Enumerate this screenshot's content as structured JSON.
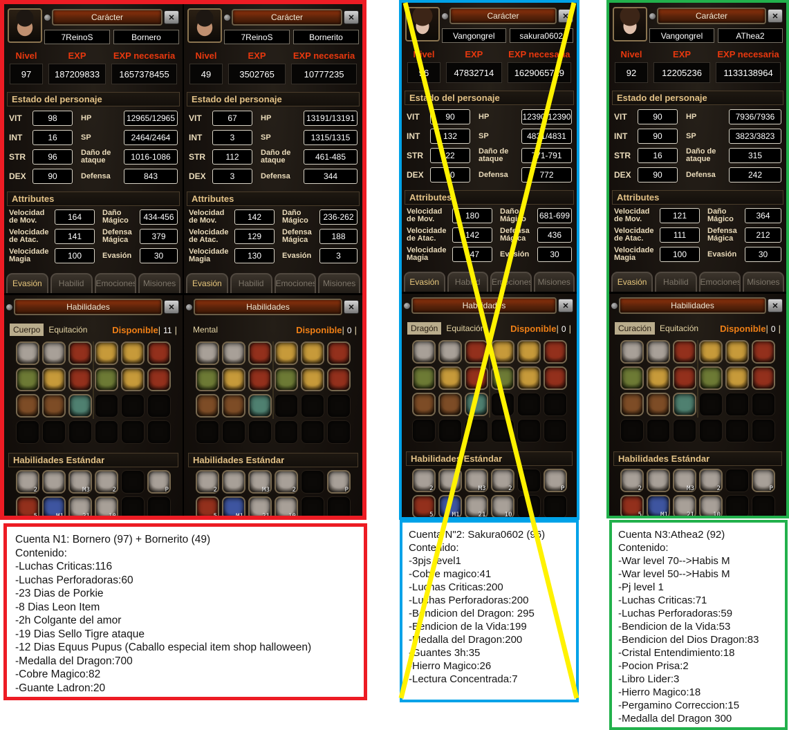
{
  "colors": {
    "red": "#ed1c24",
    "blue": "#00a2e8",
    "green": "#22b14c",
    "yellow": "#fff200"
  },
  "shared": {
    "character_title": "Carácter",
    "nivel_label": "Nivel",
    "exp_label": "EXP",
    "exp_need_label": "EXP necesaria",
    "estado_header": "Estado del personaje",
    "attributes_header": "Attributes",
    "stat_labels": {
      "vit": "VIT",
      "int": "INT",
      "str": "STR",
      "dex": "DEX",
      "hp": "HP",
      "sp": "SP",
      "atk": "Daño de ataque",
      "def": "Defensa"
    },
    "attr_labels": {
      "mov": "Velocidad de Mov.",
      "atac": "Velocidade de Atac.",
      "magia": "Velocidade Magia",
      "dmg": "Daño Mágico",
      "defm": "Defensa Mágica",
      "eva": "Evasión"
    },
    "tabs": [
      "Evasión",
      "Habilid",
      "Emociones",
      "Misiones"
    ],
    "skills_title": "Habilidades",
    "disponible_label": "Disponible",
    "standard_header": "Habilidades Estándar",
    "standard_badges": [
      [
        "2",
        "",
        "M3",
        "2",
        "",
        "P"
      ],
      [
        "5",
        "M1",
        "21",
        "10",
        "",
        ""
      ]
    ]
  },
  "panels": [
    {
      "avatar": "male-warrior-icon",
      "server": "7ReinoS",
      "name": "Bornero",
      "nivel": "97",
      "exp": "187209833",
      "exp_need": "1657378455",
      "stats": {
        "vit": "98",
        "int": "16",
        "str": "96",
        "dex": "90",
        "hp": "12965/12965",
        "sp": "2464/2464",
        "atk": "1016-1086",
        "def": "843"
      },
      "attrs": {
        "mov": "164",
        "atac": "141",
        "magia": "100",
        "dmg": "434-456",
        "defm": "379",
        "eva": "30"
      },
      "skills": {
        "tab1": "Cuerpo",
        "tab2": "Equitación",
        "tab1_active": "true",
        "disponible": "11"
      }
    },
    {
      "avatar": "male-warrior-icon",
      "server": "7ReinoS",
      "name": "Bornerito",
      "nivel": "49",
      "exp": "3502765",
      "exp_need": "10777235",
      "stats": {
        "vit": "67",
        "int": "3",
        "str": "112",
        "dex": "3",
        "hp": "13191/13191",
        "sp": "1315/1315",
        "atk": "461-485",
        "def": "344"
      },
      "attrs": {
        "mov": "142",
        "atac": "129",
        "magia": "130",
        "dmg": "236-262",
        "defm": "188",
        "eva": "3"
      },
      "skills": {
        "tab1": "Mental",
        "tab1_active": "false",
        "disponible": "0"
      }
    },
    {
      "avatar": "female-shaman-icon",
      "server": "Vangongrel",
      "name": "sakura0602",
      "nivel": "96",
      "exp": "47832714",
      "exp_need": "1629065729",
      "stats": {
        "vit": "90",
        "int": "132",
        "str": "22",
        "dex": "90",
        "hp": "12390/12390",
        "sp": "4831/4831",
        "atk": "771-791",
        "def": "772"
      },
      "attrs": {
        "mov": "180",
        "atac": "142",
        "magia": "147",
        "dmg": "681-699",
        "defm": "436",
        "eva": "30"
      },
      "skills": {
        "tab1": "Dragón",
        "tab2": "Equitación",
        "tab1_active": "true",
        "disponible": "0"
      }
    },
    {
      "avatar": "female-shaman-icon",
      "server": "Vangongrel",
      "name": "AThea2",
      "nivel": "92",
      "exp": "12205236",
      "exp_need": "1133138964",
      "stats": {
        "vit": "90",
        "int": "90",
        "str": "16",
        "dex": "90",
        "hp": "7936/7936",
        "sp": "3823/3823",
        "atk": "315",
        "def": "242"
      },
      "attrs": {
        "mov": "121",
        "atac": "111",
        "magia": "100",
        "dmg": "364",
        "defm": "212",
        "eva": "30"
      },
      "skills": {
        "tab1": "Curación",
        "tab2": "Equitación",
        "tab1_active": "true",
        "disponible": "0"
      }
    }
  ],
  "notes": [
    {
      "title": "Cuenta N1: Bornero (97) + Bornerito (49)",
      "lines": [
        "Contenido:",
        "-Luchas Criticas:116",
        "-Luchas Perforadoras:60",
        "-23 Dias de Porkie",
        "-8 Dias Leon Item",
        "-2h Colgante del amor",
        "-19 Dias Sello Tigre ataque",
        "-12 Dias Equus Pupus (Caballo especial item shop halloween)",
        "-Medalla del Dragon:700",
        "-Cobre Magico:82",
        "-Guante Ladron:20"
      ]
    },
    {
      "title": "Cuenta N\"2: Sakura0602 (96)",
      "lines": [
        "Contenido:",
        "-3pjs level1",
        "-Cobre magico:41",
        "-Luchas Criticas:200",
        "-Luchas Perforadoras:200",
        "-Bendicion del Dragon: 295",
        "-Bendicion de la Vida:199",
        "-Medalla del Dragon:200",
        "-Guantes 3h:35",
        "-Hierro Magico:26",
        "-Lectura Concentrada:7"
      ]
    },
    {
      "title": "Cuenta N3:Athea2 (92)",
      "lines": [
        "Contenido:",
        "-War level 70-->Habis M",
        "-War level 50-->Habis M",
        "-Pj level 1",
        "-Luchas Criticas:71",
        "-Luchas Perforadoras:59",
        "-Bendicion de la Vida:53",
        "-Bendicion del Dios Dragon:83",
        "-Cristal Entendimiento:18",
        "-Pocion Prisa:2",
        "-Libro Lider:3",
        "-Hierro Magico:18",
        "-Pergamino Correccion:15",
        "-Medalla del Dragon 300"
      ]
    }
  ]
}
